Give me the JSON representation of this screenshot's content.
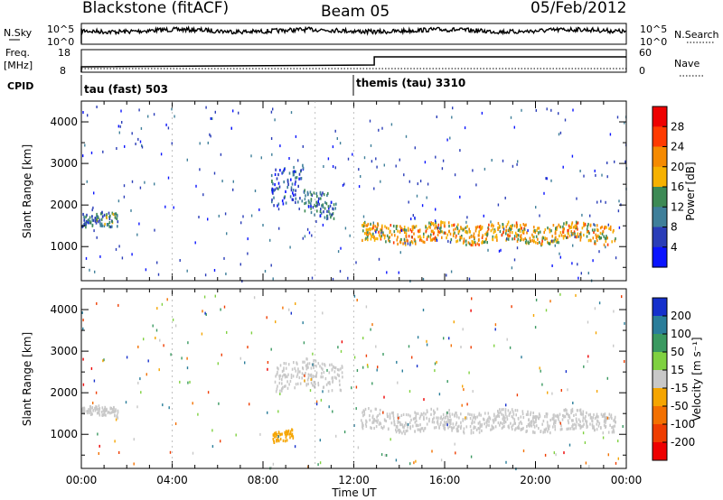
{
  "header": {
    "station": "Blackstone (fitACF)",
    "beam": "Beam 05",
    "date": "05/Feb/2012"
  },
  "strip": {
    "nsky_label": "N.Sky",
    "nsky_ticks": [
      "10^5",
      "10^0"
    ],
    "nsearch_label": "N.Search",
    "nsearch_ticks": [
      "10^5",
      "10^0"
    ],
    "freq_label": "Freq.",
    "freq_unit": "[MHz]",
    "freq_ticks": [
      "18",
      "8"
    ],
    "nave_label": "Nave",
    "nave_ticks": [
      "60",
      "0"
    ],
    "cpid_label": "CPID",
    "cpid_segments": [
      {
        "name": "tau (fast) 503",
        "start_hour": 0.0
      },
      {
        "name": "themis (tau) 3310",
        "start_hour": 12.0
      }
    ],
    "freq_step_hour": 12.9
  },
  "axes": {
    "ylabel": "Slant Range [km]",
    "xlabel": "Time UT",
    "xticks": [
      "00:00",
      "04:00",
      "08:00",
      "12:00",
      "16:00",
      "20:00",
      "00:00"
    ],
    "yticks": [
      "1000",
      "2000",
      "3000",
      "4000"
    ],
    "xlim_hours": [
      0,
      24
    ],
    "ylim_km": [
      180,
      4500
    ]
  },
  "colorbars": {
    "power": {
      "label": "Power [dB]",
      "ticks": [
        "4",
        "8",
        "12",
        "16",
        "20",
        "24",
        "28"
      ],
      "colors": [
        "#0a14ff",
        "#2a3db8",
        "#3f7f9a",
        "#3d8a55",
        "#f6b100",
        "#f58a00",
        "#ff3a00",
        "#ee0000"
      ]
    },
    "velocity": {
      "label": "Velocity [m s⁻¹]",
      "ticks": [
        "200",
        "100",
        "50",
        "15",
        "-15",
        "-50",
        "-100",
        "-200"
      ],
      "colors": [
        "#1530cc",
        "#2a7d9a",
        "#3a9960",
        "#7fd140",
        "#c8c8c8",
        "#f5a500",
        "#f37000",
        "#ef3d00",
        "#ee0000"
      ]
    }
  },
  "chart_data": [
    {
      "type": "heatmap",
      "panel": "power",
      "xlabel": "Time UT",
      "ylabel": "Slant Range [km]",
      "colorbar_label": "Power [dB]",
      "xlim_hours": [
        0,
        24
      ],
      "ylim_km": [
        180,
        4500
      ],
      "clim": [
        0,
        30
      ],
      "features": [
        {
          "t0": 0.0,
          "t1": 1.6,
          "r_center_km": 1650,
          "r_width_km": 350,
          "value": 10
        },
        {
          "t0": 8.3,
          "t1": 9.8,
          "r_center_km": 2500,
          "r_width_km": 900,
          "value": 6
        },
        {
          "t0": 9.8,
          "t1": 11.2,
          "r_center_km": 2050,
          "r_width_km": 600,
          "value": 9
        },
        {
          "t0": 12.3,
          "t1": 23.5,
          "r_center_km": 1350,
          "r_width_km": 450,
          "value": 18
        }
      ]
    },
    {
      "type": "heatmap",
      "panel": "velocity",
      "xlabel": "Time UT",
      "ylabel": "Slant Range [km]",
      "colorbar_label": "Velocity [m s⁻¹]",
      "xlim_hours": [
        0,
        24
      ],
      "ylim_km": [
        180,
        4500
      ],
      "clim": [
        -250,
        250
      ],
      "features": [
        {
          "t0": 0.0,
          "t1": 1.6,
          "r_center_km": 1550,
          "r_width_km": 250,
          "value": 0
        },
        {
          "t0": 8.4,
          "t1": 9.3,
          "r_center_km": 1000,
          "r_width_km": 250,
          "value": -50
        },
        {
          "t0": 8.5,
          "t1": 11.5,
          "r_center_km": 2450,
          "r_width_km": 700,
          "value": 0
        },
        {
          "t0": 12.3,
          "t1": 23.5,
          "r_center_km": 1350,
          "r_width_km": 500,
          "value": 0
        }
      ]
    }
  ]
}
